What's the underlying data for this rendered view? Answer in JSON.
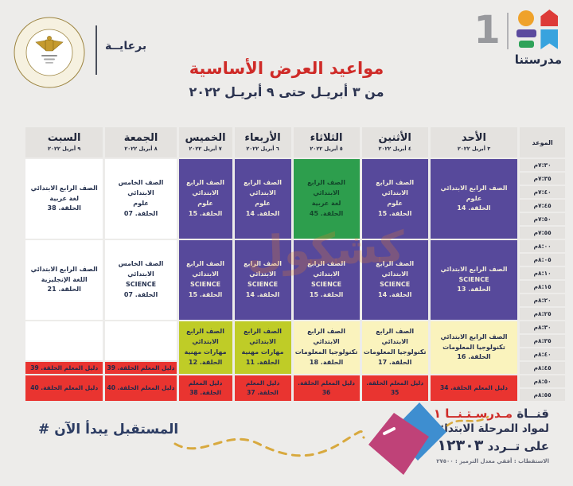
{
  "header": {
    "sponsor_label": "برعايــة",
    "ministry_emblem_ring_text": "MINISTRY OF EDUCATION AND TECHNICAL EDUCATION",
    "channel_number": "1",
    "channel_name": "مدرستنا",
    "title": "مواعيد العرض الأساسية",
    "subtitle": "من ٣ أبريـل حتى ٩ أبريـل ٢٠٢٢"
  },
  "watermark": {
    "text": "كشكول"
  },
  "table": {
    "time_header": "الموعد",
    "days": [
      {
        "name": "الأحد",
        "date": "٣ أبريل ٢٠٢٢"
      },
      {
        "name": "الأثنين",
        "date": "٤ أبريل ٢٠٢٢"
      },
      {
        "name": "الثلاثاء",
        "date": "٥ أبريل ٢٠٢٢"
      },
      {
        "name": "الأربعاء",
        "date": "٦ أبريل ٢٠٢٢"
      },
      {
        "name": "الخميس",
        "date": "٧ أبريل ٢٠٢٢"
      },
      {
        "name": "الجمعة",
        "date": "٨ أبريل ٢٠٢٢"
      },
      {
        "name": "السبت",
        "date": "٩ أبريل ٢٠٢٢"
      }
    ],
    "times": [
      "٧:٣٠م",
      "٧:٣٥م",
      "٧:٤٠م",
      "٧:٤٥م",
      "٧:٥٠م",
      "٧:٥٥م",
      "٨:٠٠م",
      "٨:٠٥م",
      "٨:١٠م",
      "٨:١٥م",
      "٨:٢٠م",
      "٨:٢٥م",
      "٨:٣٠م",
      "٨:٣٥م",
      "٨:٤٠م",
      "٨:٤٥م",
      "٨:٥٠م",
      "٨:٥٥م"
    ],
    "blocks": [
      {
        "day": 0,
        "row": 0,
        "span": 6,
        "color": "purple",
        "lines": [
          "الصف الرابع الابتدائي",
          "علوم",
          "الحلقة. 14"
        ]
      },
      {
        "day": 1,
        "row": 0,
        "span": 6,
        "color": "purple",
        "lines": [
          "الصف الرابع الابتدائي",
          "علوم",
          "الحلقة. 15"
        ]
      },
      {
        "day": 2,
        "row": 0,
        "span": 6,
        "color": "green",
        "lines": [
          "الصف الرابع الابتدائي",
          "لغة عربية",
          "الحلقة. 45"
        ]
      },
      {
        "day": 3,
        "row": 0,
        "span": 6,
        "color": "purple",
        "lines": [
          "الصف الرابع الابتدائي",
          "علوم",
          "الحلقة. 14"
        ]
      },
      {
        "day": 4,
        "row": 0,
        "span": 6,
        "color": "purple",
        "lines": [
          "الصف الرابع الابتدائي",
          "علوم",
          "الحلقة. 15"
        ]
      },
      {
        "day": 5,
        "row": 0,
        "span": 6,
        "color": "white",
        "lines": [
          "الصف الخامس الابتدائي",
          "علوم",
          "الحلقة. 07"
        ]
      },
      {
        "day": 6,
        "row": 0,
        "span": 6,
        "color": "white",
        "lines": [
          "الصف الرابع الابتدائي",
          "لغة عربية",
          "الحلقة. 38"
        ]
      },
      {
        "day": 0,
        "row": 6,
        "span": 6,
        "color": "purple",
        "lines": [
          "الصف الرابع الابتدائي",
          "SCIENCE",
          "الحلقة. 13"
        ]
      },
      {
        "day": 1,
        "row": 6,
        "span": 6,
        "color": "purple",
        "lines": [
          "الصف الرابع الابتدائي",
          "SCIENCE",
          "الحلقة. 14"
        ]
      },
      {
        "day": 2,
        "row": 6,
        "span": 6,
        "color": "purple",
        "lines": [
          "الصف الرابع الابتدائي",
          "SCIENCE",
          "الحلقة. 15"
        ]
      },
      {
        "day": 3,
        "row": 6,
        "span": 6,
        "color": "purple",
        "lines": [
          "الصف الرابع الابتدائي",
          "SCIENCE",
          "الحلقة. 14"
        ]
      },
      {
        "day": 4,
        "row": 6,
        "span": 6,
        "color": "purple",
        "lines": [
          "الصف الرابع الابتدائي",
          "SCIENCE",
          "الحلقة. 15"
        ]
      },
      {
        "day": 5,
        "row": 6,
        "span": 6,
        "color": "white",
        "lines": [
          "الصف الخامس الابتدائي",
          "SCIENCE",
          "الحلقة. 07"
        ]
      },
      {
        "day": 6,
        "row": 6,
        "span": 6,
        "color": "white",
        "lines": [
          "الصف الرابع الابتدائي",
          "اللغة الإنجليزية",
          "الحلقة. 21"
        ]
      },
      {
        "day": 0,
        "row": 12,
        "span": 4,
        "color": "paleyellow",
        "lines": [
          "الصف الرابع الابتدائي",
          "تكنولوجيا المعلومات",
          "الحلقة. 16"
        ]
      },
      {
        "day": 1,
        "row": 12,
        "span": 4,
        "color": "paleyellow",
        "lines": [
          "الصف الرابع الابتدائي",
          "تكنولوجيا المعلومات",
          "الحلقة. 17"
        ]
      },
      {
        "day": 2,
        "row": 12,
        "span": 4,
        "color": "paleyellow",
        "lines": [
          "الصف الرابع الابتدائي",
          "تكنولوجيا المعلومات",
          "الحلقة. 18"
        ]
      },
      {
        "day": 3,
        "row": 12,
        "span": 4,
        "color": "lime",
        "lines": [
          "الصف الرابع الابتدائي",
          "مهارات مهنية",
          "الحلقة. 11"
        ]
      },
      {
        "day": 4,
        "row": 12,
        "span": 4,
        "color": "lime",
        "lines": [
          "الصف الرابع الابتدائي",
          "مهارات مهنية",
          "الحلقة. 12"
        ]
      },
      {
        "day": 5,
        "row": 12,
        "span": 3,
        "color": "blank",
        "lines": []
      },
      {
        "day": 6,
        "row": 12,
        "span": 3,
        "color": "blank",
        "lines": []
      },
      {
        "day": 5,
        "row": 15,
        "span": 1,
        "color": "red",
        "lines": [
          "دليل المعلم الحلقة. 39"
        ]
      },
      {
        "day": 6,
        "row": 15,
        "span": 1,
        "color": "red",
        "lines": [
          "دليل المعلم الحلقة. 39"
        ]
      },
      {
        "day": 0,
        "row": 16,
        "span": 2,
        "color": "red",
        "lines": [
          "دليل المعلم الحلقة. 34"
        ]
      },
      {
        "day": 1,
        "row": 16,
        "span": 2,
        "color": "red",
        "lines": [
          "دليل المعلم الحلقة. 35"
        ]
      },
      {
        "day": 2,
        "row": 16,
        "span": 2,
        "color": "red",
        "lines": [
          "دليل المعلم الحلقة. 36"
        ]
      },
      {
        "day": 3,
        "row": 16,
        "span": 2,
        "color": "red",
        "lines": [
          "دليل المعلم الحلقة. 37"
        ]
      },
      {
        "day": 4,
        "row": 16,
        "span": 2,
        "color": "red",
        "lines": [
          "دليل المعلم الحلقة. 38"
        ]
      },
      {
        "day": 5,
        "row": 16,
        "span": 2,
        "color": "red",
        "lines": [
          "دليل المعلم الحلقة. 40"
        ]
      },
      {
        "day": 6,
        "row": 16,
        "span": 2,
        "color": "red",
        "lines": [
          "دليل المعلم الحلقة. 40"
        ]
      }
    ]
  },
  "footer": {
    "channel_line_prefix": "قنــاة",
    "channel_line_brand": "مـدرسـتـنــا ١",
    "line2": "لمواد المرحلة الابتدائية",
    "frequency_prefix": "على تــردد",
    "frequency_number": "١٢٣٠٣",
    "tech_line": "الاستقطاب : أفقي   معدل الترميز : ٢٧٥٠٠",
    "hashtag_symbol": "#",
    "hashtag_text": "المستقبل يبدأ الآن"
  },
  "colors": {
    "page_bg": "#edecea",
    "title_red": "#cf2b28",
    "navy": "#2b3350",
    "cell_purple": "#57499b",
    "cell_green": "#2d9e4d",
    "cell_pale_yellow": "#faf3bd",
    "cell_lime": "#bfcc27",
    "cell_red": "#e93430",
    "grid_gray": "#e4e2df",
    "brand_orange": "#efa22b",
    "brand_red": "#dd3b38",
    "brand_purple": "#5b4a9e",
    "brand_green": "#2fa359",
    "brand_blue": "#38a3de",
    "kite_pink": "#bf4278",
    "kite_blue": "#3e8ed0",
    "tail_gold": "#d8a93e"
  }
}
